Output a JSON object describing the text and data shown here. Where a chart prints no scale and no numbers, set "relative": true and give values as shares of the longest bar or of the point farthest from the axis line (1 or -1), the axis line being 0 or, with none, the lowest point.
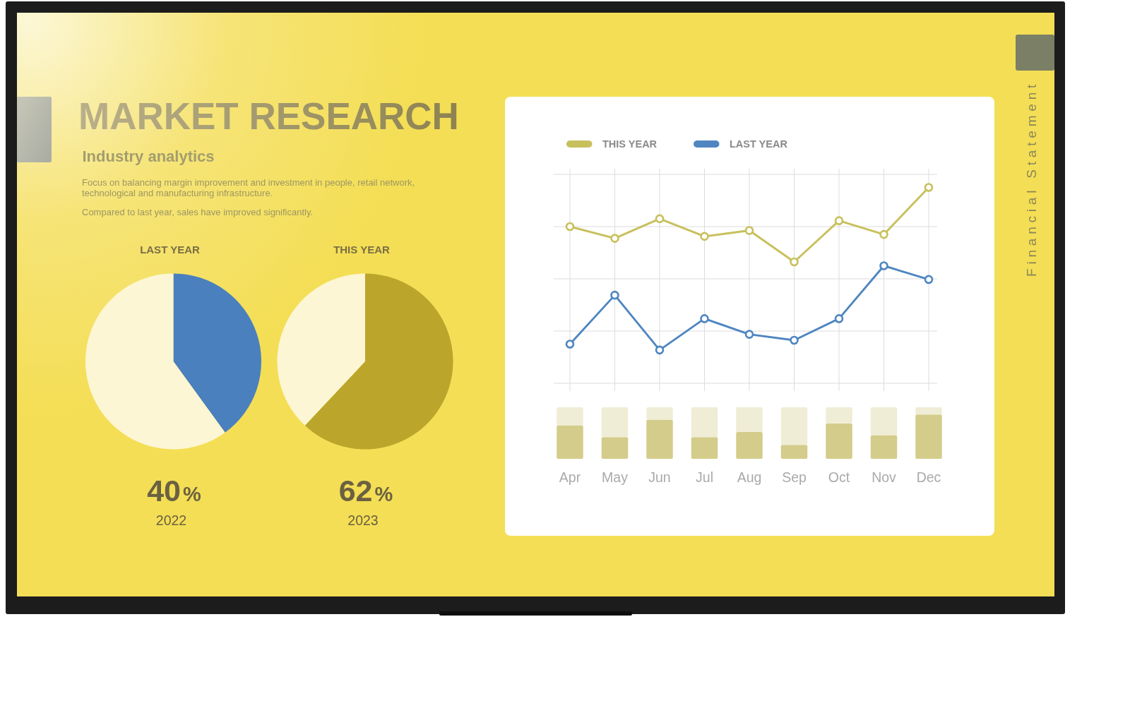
{
  "chart_data": [
    {
      "type": "other",
      "title": "MARKET RESEARCH",
      "subtitle": "Industry analytics",
      "annotations": [
        "Focus on balancing margin improvement and investment in people, retail network, technological and manufacturing infrastructure.",
        "Compared to last year, sales have improved significantly.",
        "Financial Statement"
      ]
    },
    {
      "type": "pie",
      "title": "LAST YEAR",
      "categories": [
        null,
        null
      ],
      "values": [
        40,
        60
      ],
      "colors": [
        "#4a80bd",
        "#fcf6d4"
      ],
      "annotations": [
        "40%",
        "2022"
      ]
    },
    {
      "type": "pie",
      "title": "THIS YEAR",
      "categories": [
        null,
        null
      ],
      "values": [
        62,
        38
      ],
      "colors": [
        "#bba52b",
        "#fcf6d4"
      ],
      "annotations": [
        "62%",
        "2023"
      ]
    },
    {
      "type": "line",
      "categories": [
        null,
        null,
        null,
        null,
        null,
        null,
        null,
        null,
        null
      ],
      "series": [
        {
          "name": "THIS YEAR",
          "color": "#c8c05c",
          "values": [
            0.8,
            0.74,
            0.84,
            0.75,
            0.78,
            0.62,
            0.83,
            0.76,
            1
          ]
        },
        {
          "name": "LAST YEAR",
          "color": "#4f86c0",
          "values": [
            0.2,
            0.45,
            0.17,
            0.33,
            0.25,
            0.22,
            0.33,
            0.6,
            0.53
          ]
        }
      ],
      "relative": true,
      "grid": true,
      "legend": "top left",
      "marker": "circle"
    },
    {
      "type": "bar",
      "categories": [
        "Apr",
        "May",
        "Jun",
        "Jul",
        "Aug",
        "Sep",
        "Oct",
        "Nov",
        "Dec"
      ],
      "series": [
        {
          "color": "#d4cc8a",
          "values": [
            0.65,
            0.42,
            0.76,
            0.42,
            0.52,
            0.27,
            0.69,
            0.46,
            0.86
          ]
        },
        {
          "color": "#f0edd6",
          "values": [
            0.35,
            0.58,
            0.24,
            0.58,
            0.48,
            0.73,
            0.31,
            0.54,
            0.14
          ]
        }
      ],
      "stacked": true,
      "relative": true
    }
  ]
}
